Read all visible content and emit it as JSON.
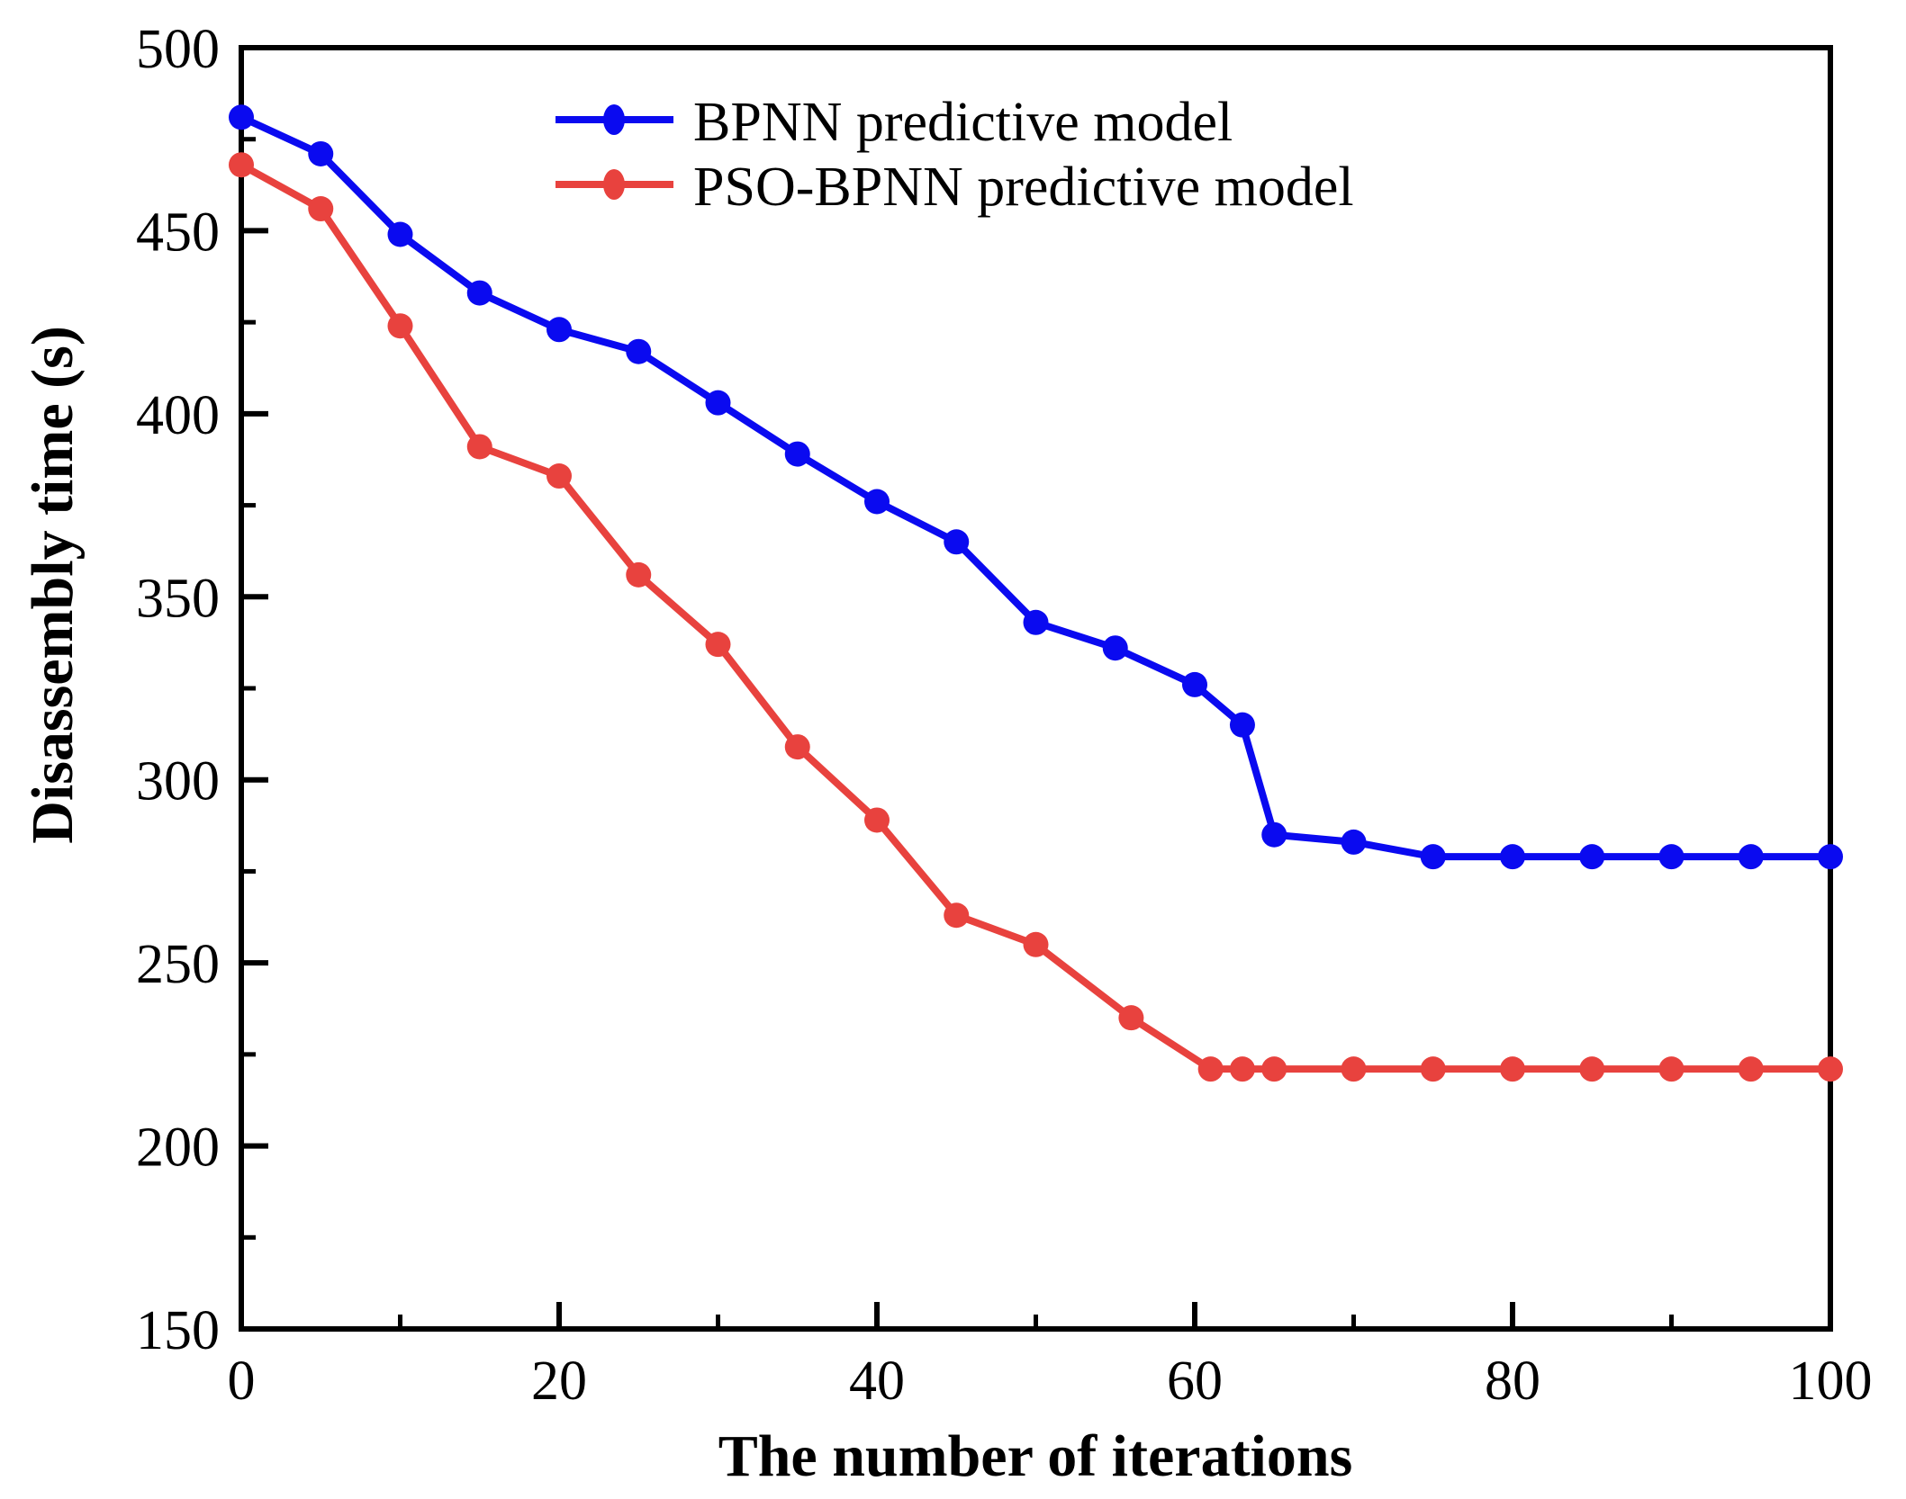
{
  "figure": {
    "background": "#ffffff",
    "frame_color": "#000000"
  },
  "legend": {
    "entries": [
      {
        "label": "BPNN predictive model",
        "marker": "filled-circle-on-line"
      },
      {
        "label": "PSO-BPNN predictive model",
        "marker": "filled-circle-on-line"
      }
    ]
  },
  "chart_data": {
    "type": "line",
    "title": "",
    "xlabel": "The number of iterations",
    "ylabel": "Disassembly time (s)",
    "xlim": [
      0,
      100
    ],
    "ylim": [
      150,
      500
    ],
    "grid": false,
    "legend_position": "top-center-inside",
    "x_major_ticks": [
      0,
      20,
      40,
      60,
      80,
      100
    ],
    "x_minor_ticks": [
      10,
      30,
      50,
      70,
      90
    ],
    "y_major_ticks": [
      150,
      200,
      250,
      300,
      350,
      400,
      450,
      500
    ],
    "y_minor_ticks": [
      175,
      225,
      275,
      325,
      375,
      425,
      475
    ],
    "series": [
      {
        "name": "BPNN predictive model",
        "color": "#0a0af0",
        "x": [
          0,
          5,
          10,
          15,
          20,
          25,
          30,
          35,
          40,
          45,
          50,
          55,
          60,
          63,
          65,
          70,
          75,
          80,
          85,
          90,
          95,
          100
        ],
        "y": [
          481,
          471,
          449,
          433,
          423,
          417,
          403,
          389,
          376,
          365,
          343,
          336,
          326,
          315,
          285,
          283,
          279,
          279,
          279,
          279,
          279,
          279
        ]
      },
      {
        "name": "PSO-BPNN predictive model",
        "color": "#e8423e",
        "x": [
          0,
          5,
          10,
          15,
          20,
          25,
          30,
          35,
          40,
          45,
          50,
          56,
          61,
          63,
          65,
          70,
          75,
          80,
          85,
          90,
          95,
          100
        ],
        "y": [
          468,
          456,
          424,
          391,
          383,
          356,
          337,
          309,
          289,
          263,
          255,
          235,
          221,
          221,
          221,
          221,
          221,
          221,
          221,
          221,
          221,
          221
        ]
      }
    ]
  }
}
